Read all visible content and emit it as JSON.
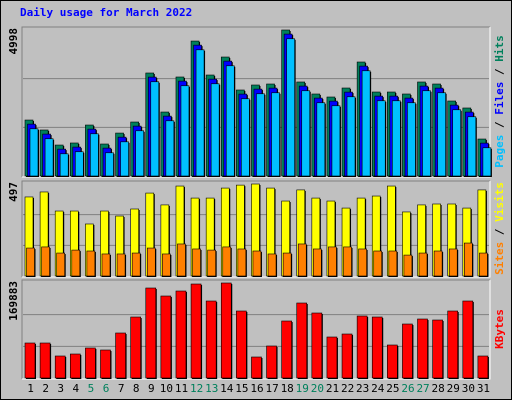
{
  "chart_data": [
    {
      "type": "bar",
      "title": "Daily usage for March 2022",
      "ylim": [
        0,
        4998
      ],
      "yticks": [
        4998
      ],
      "legend_separator": " / ",
      "series": [
        {
          "name": "Pages",
          "color": "#00c0ff",
          "values": [
            1616,
            1275,
            760,
            830,
            1445,
            795,
            1170,
            1548,
            3226,
            1890,
            3089,
            4320,
            3157,
            3773,
            2644,
            2815,
            2849,
            4698,
            2918,
            2507,
            2404,
            2712,
            3602,
            2575,
            2575,
            2507,
            2918,
            2849,
            2267,
            2028,
            966
          ]
        },
        {
          "name": "Files",
          "color": "#0000ff",
          "values": [
            1776,
            1435,
            920,
            990,
            1605,
            955,
            1330,
            1708,
            3386,
            2050,
            3249,
            4480,
            3317,
            3933,
            2804,
            2975,
            3009,
            4858,
            3078,
            2667,
            2564,
            2872,
            3762,
            2735,
            2735,
            2667,
            3078,
            3009,
            2427,
            2188,
            1126
          ]
        },
        {
          "name": "Hits",
          "color": "#00805c",
          "values": [
            1916,
            1575,
            1060,
            1130,
            1745,
            1095,
            1470,
            1848,
            3526,
            2190,
            3389,
            4620,
            3457,
            4073,
            2944,
            3115,
            3149,
            4998,
            3218,
            2807,
            2704,
            3012,
            3902,
            2875,
            2875,
            2807,
            3218,
            3149,
            2567,
            2328,
            1266
          ]
        }
      ]
    },
    {
      "type": "bar",
      "ylim": [
        0,
        497
      ],
      "yticks": [
        497
      ],
      "legend_separator": " / ",
      "series": [
        {
          "name": "Sites",
          "color": "#ff8000",
          "values": [
            151,
            157,
            124,
            140,
            135,
            119,
            119,
            124,
            151,
            119,
            173,
            146,
            140,
            157,
            146,
            135,
            119,
            124,
            173,
            146,
            157,
            157,
            146,
            135,
            135,
            113,
            124,
            135,
            146,
            178,
            124
          ]
        },
        {
          "name": "Visits",
          "color": "#ffff00",
          "values": [
            427,
            454,
            351,
            351,
            281,
            351,
            324,
            362,
            448,
            384,
            486,
            421,
            421,
            475,
            491,
            497,
            475,
            405,
            465,
            421,
            405,
            367,
            421,
            432,
            486,
            346,
            384,
            389,
            389,
            367,
            465
          ]
        }
      ]
    },
    {
      "type": "bar",
      "ylim": [
        0,
        169883
      ],
      "yticks": [
        169883
      ],
      "categories": [
        "1",
        "2",
        "3",
        "4",
        "5",
        "6",
        "7",
        "8",
        "9",
        "10",
        "11",
        "12",
        "13",
        "14",
        "15",
        "16",
        "17",
        "18",
        "19",
        "20",
        "21",
        "22",
        "23",
        "24",
        "25",
        "26",
        "27",
        "28",
        "29",
        "30",
        "31"
      ],
      "category_colors": [
        "#000000",
        "#000000",
        "#000000",
        "#000000",
        "#00805c",
        "#00805c",
        "#000000",
        "#000000",
        "#000000",
        "#000000",
        "#000000",
        "#00805c",
        "#00805c",
        "#000000",
        "#000000",
        "#000000",
        "#000000",
        "#000000",
        "#00805c",
        "#00805c",
        "#000000",
        "#000000",
        "#000000",
        "#000000",
        "#000000",
        "#00805c",
        "#00805c",
        "#000000",
        "#000000",
        "#000000",
        "#000000"
      ],
      "series": [
        {
          "name": "KBytes",
          "color": "#ff0000",
          "values": [
            62580,
            62580,
            39340,
            42900,
            53640,
            50060,
            80460,
            109070,
            160920,
            146620,
            155560,
            168070,
            137680,
            169883,
            119800,
            37550,
            57220,
            101920,
            134100,
            116220,
            73310,
            78670,
            110860,
            109070,
            59000,
            96550,
            105490,
            103700,
            119800,
            137680,
            39340
          ]
        }
      ]
    }
  ]
}
